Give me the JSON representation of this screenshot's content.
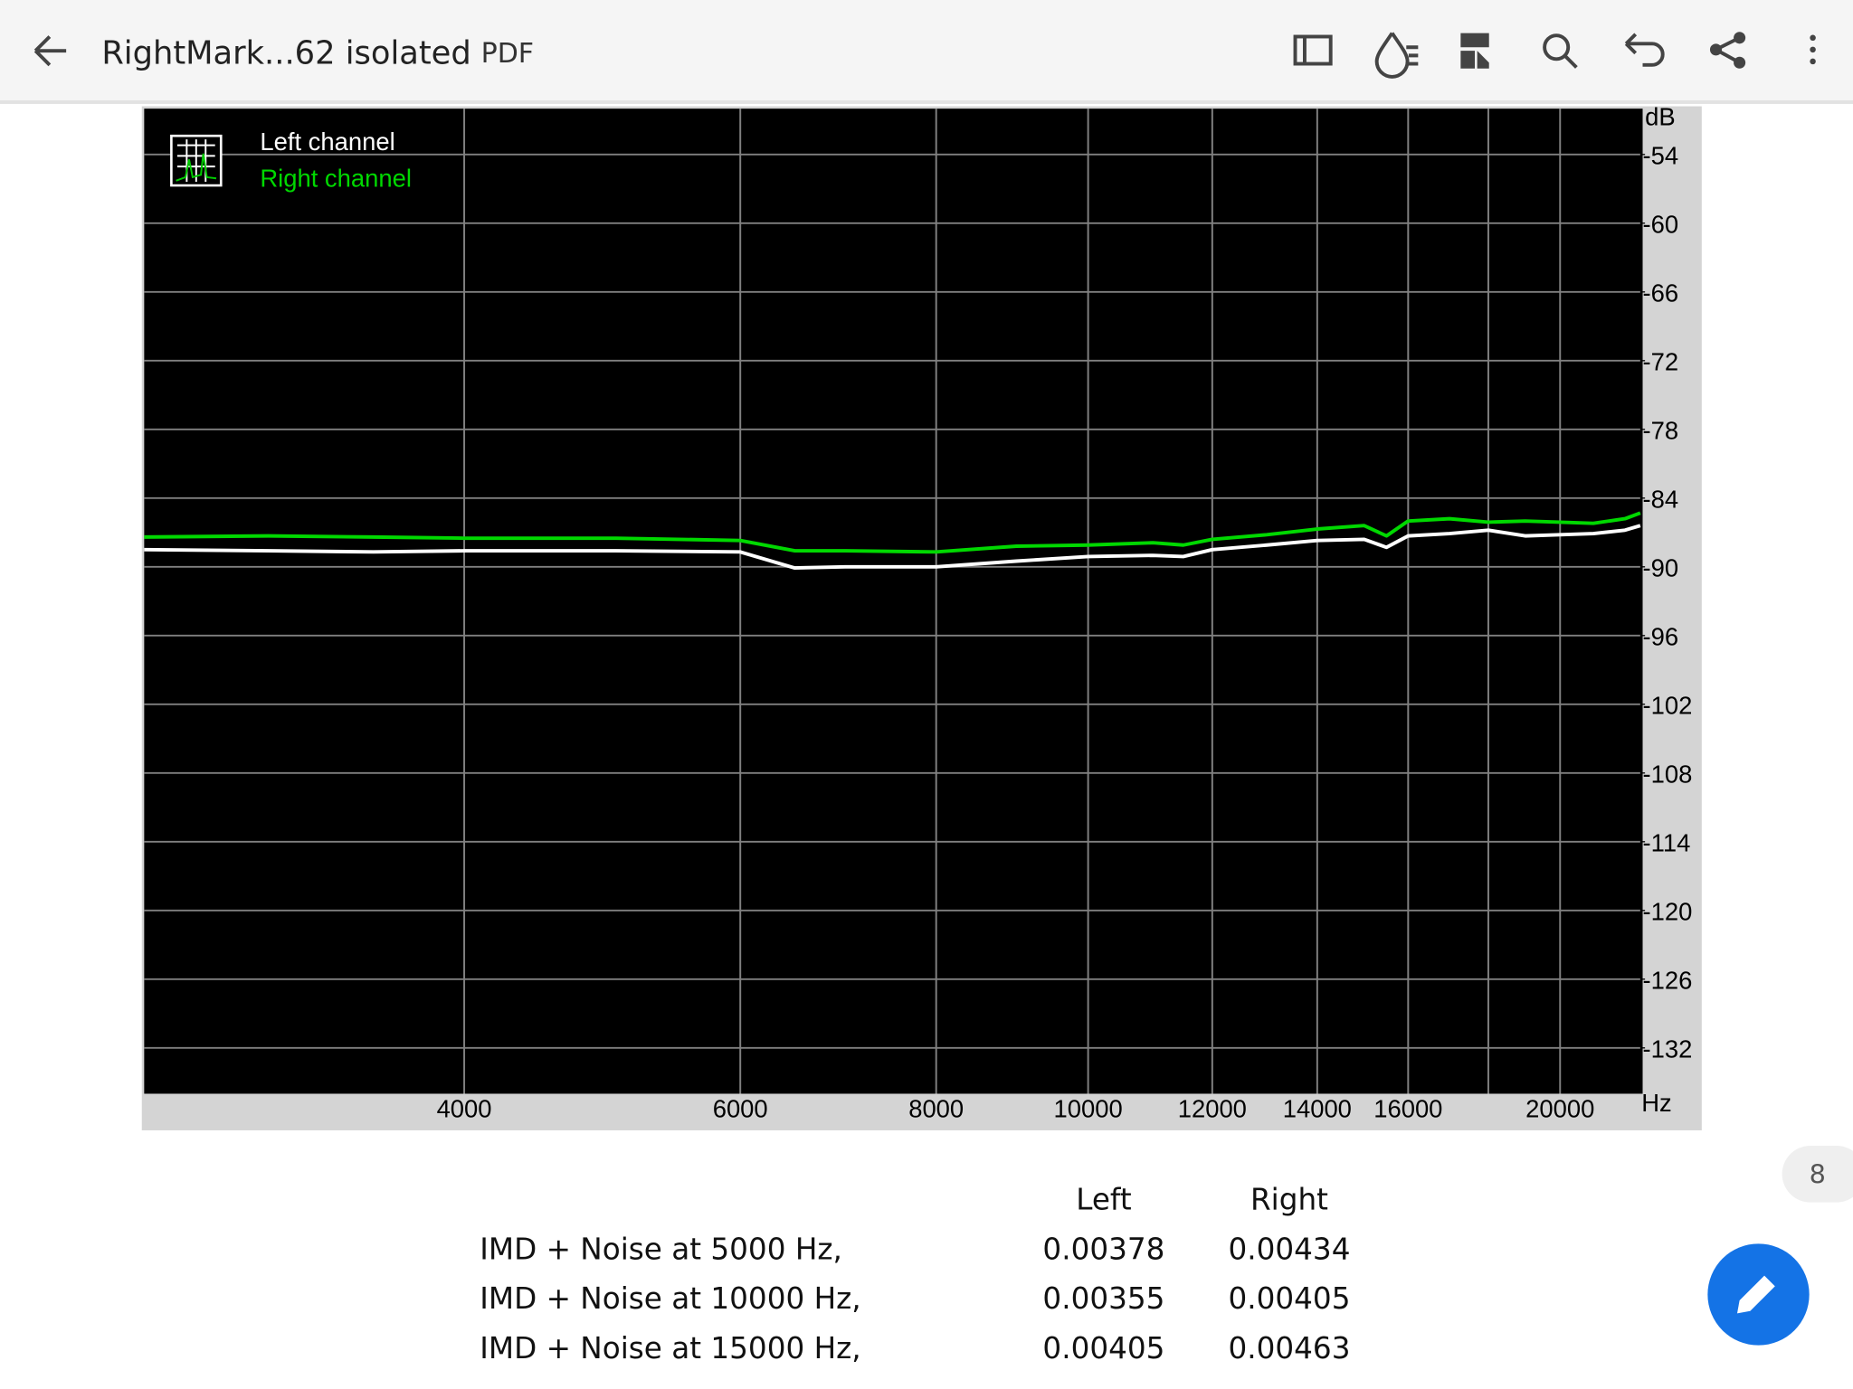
{
  "header": {
    "title": "RightMark...62 isolated",
    "file_type": "PDF"
  },
  "chart_data": {
    "type": "line",
    "x": [
      2500,
      3000,
      3500,
      4000,
      5000,
      6000,
      6500,
      7000,
      8000,
      9000,
      10000,
      11000,
      11500,
      12000,
      13000,
      14000,
      15000,
      15500,
      16000,
      17000,
      18000,
      19000,
      20000,
      21000,
      22000,
      22500
    ],
    "series": [
      {
        "name": "Left channel",
        "color": "#ffffff",
        "values": [
          -88.5,
          -88.6,
          -88.7,
          -88.6,
          -88.6,
          -88.7,
          -90.1,
          -90.0,
          -90.0,
          -89.5,
          -89.1,
          -89.0,
          -89.1,
          -88.5,
          -88.1,
          -87.7,
          -87.6,
          -88.3,
          -87.3,
          -87.1,
          -86.8,
          -87.3,
          -87.2,
          -87.1,
          -86.8,
          -86.4
        ]
      },
      {
        "name": "Right channel",
        "color": "#00d800",
        "values": [
          -87.4,
          -87.3,
          -87.4,
          -87.5,
          -87.5,
          -87.7,
          -88.6,
          -88.6,
          -88.7,
          -88.2,
          -88.1,
          -87.9,
          -88.1,
          -87.6,
          -87.2,
          -86.7,
          -86.4,
          -87.3,
          -86.0,
          -85.8,
          -86.1,
          -86.0,
          -86.1,
          -86.2,
          -85.8,
          -85.3
        ]
      }
    ],
    "xlim": [
      2500,
      22500
    ],
    "xscale": "log",
    "xticks": [
      4000,
      6000,
      8000,
      10000,
      12000,
      14000,
      16000,
      20000
    ],
    "x_gridlines": [
      18000
    ],
    "xlabel": "Hz",
    "ylim": [
      -136,
      -50
    ],
    "yticks": [
      -54,
      -60,
      -66,
      -72,
      -78,
      -84,
      -90,
      -96,
      -102,
      -108,
      -114,
      -120,
      -126,
      -132
    ],
    "ylabel": "dB",
    "grid": true,
    "legend": "upper left"
  },
  "table": {
    "header": [
      "Left",
      "Right"
    ],
    "rows": [
      [
        "IMD + Noise at 5000 Hz,",
        0.00378,
        0.00434
      ],
      [
        "IMD + Noise at 10000 Hz,",
        0.00355,
        0.00405
      ],
      [
        "IMD + Noise at 15000 Hz,",
        0.00405,
        0.00463
      ]
    ]
  },
  "page_number": 8
}
